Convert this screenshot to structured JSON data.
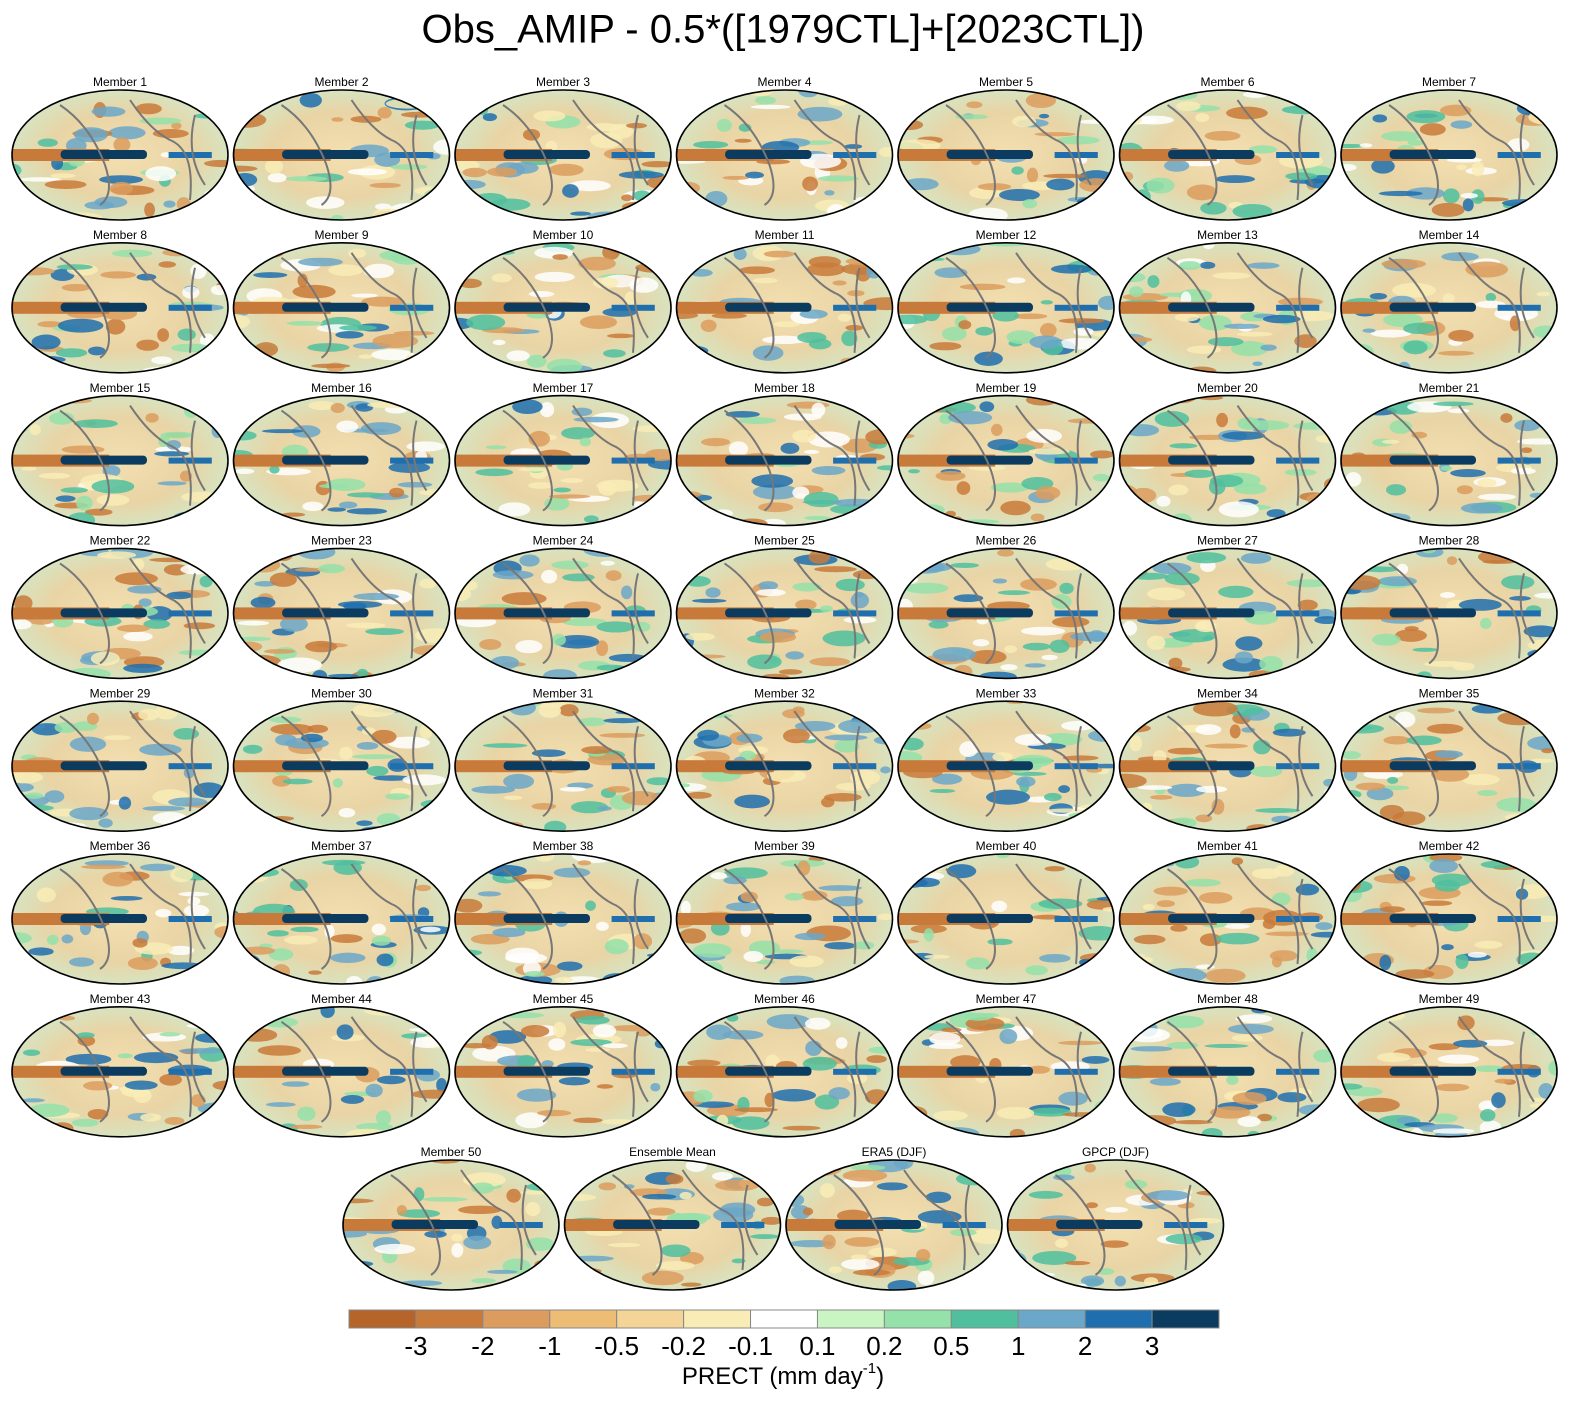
{
  "title": "Obs_AMIP - 0.5*([1979CTL]+[2023CTL])",
  "panels": [
    "Member 1",
    "Member 2",
    "Member 3",
    "Member 4",
    "Member 5",
    "Member 6",
    "Member 7",
    "Member 8",
    "Member 9",
    "Member 10",
    "Member 11",
    "Member 12",
    "Member 13",
    "Member 14",
    "Member 15",
    "Member 16",
    "Member 17",
    "Member 18",
    "Member 19",
    "Member 20",
    "Member 21",
    "Member 22",
    "Member 23",
    "Member 24",
    "Member 25",
    "Member 26",
    "Member 27",
    "Member 28",
    "Member 29",
    "Member 30",
    "Member 31",
    "Member 32",
    "Member 33",
    "Member 34",
    "Member 35",
    "Member 36",
    "Member 37",
    "Member 38",
    "Member 39",
    "Member 40",
    "Member 41",
    "Member 42",
    "Member 43",
    "Member 44",
    "Member 45",
    "Member 46",
    "Member 47",
    "Member 48",
    "Member 49",
    "Member 50",
    "Ensemble Mean",
    "ERA5 (DJF)",
    "GPCP (DJF)"
  ],
  "colorbar": {
    "colors": [
      "#b5652a",
      "#c87a3a",
      "#dc9c5e",
      "#eebd75",
      "#f4d597",
      "#f9ecb6",
      "#ffffff",
      "#c9f5c2",
      "#94e1a9",
      "#4fbf9d",
      "#6ba7c8",
      "#1f6fae",
      "#0b3c5f"
    ],
    "labels": [
      "-3",
      "-2",
      "-1",
      "-0.5",
      "-0.2",
      "-0.1",
      "0.1",
      "0.2",
      "0.5",
      "1",
      "2",
      "3"
    ],
    "axis_label": "PRECT (mm day",
    "axis_label_superscript": "-1",
    "axis_label_end": ")"
  }
}
